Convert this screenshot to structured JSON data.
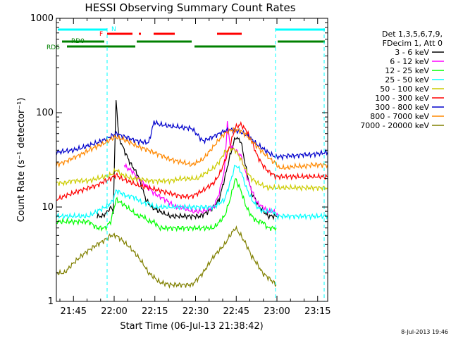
{
  "chart_data": {
    "type": "line",
    "title": "HESSI Observing Summary Count Rates",
    "xlabel": "Start Time (06-Jul-13 21:38:42)",
    "ylabel": "Count Rate (s⁻¹ detector⁻¹)",
    "yscale": "log",
    "ylim": [
      1,
      1000
    ],
    "xlim_minutes_from_start": [
      0,
      100
    ],
    "x_ticks": [
      {
        "label": "21:45",
        "minute": 6.3
      },
      {
        "label": "22:00",
        "minute": 21.3
      },
      {
        "label": "22:15",
        "minute": 36.3
      },
      {
        "label": "22:30",
        "minute": 51.3
      },
      {
        "label": "22:45",
        "minute": 66.3
      },
      {
        "label": "23:00",
        "minute": 81.3
      },
      {
        "label": "23:15",
        "minute": 96.3
      }
    ],
    "y_ticks": [
      {
        "label": "1",
        "value": 1
      },
      {
        "label": "10",
        "value": 10
      },
      {
        "label": "100",
        "value": 100
      },
      {
        "label": "1000",
        "value": 1000
      }
    ],
    "legend_header": [
      "Det 1,3,5,6,7,9,",
      "FDecim 1, Att 0"
    ],
    "legend_placement": "right",
    "timestamp": "8-Jul-2013 19:46",
    "flag_labels": {
      "n": "N",
      "f": "F",
      "rd0": "RD0",
      "rd6": "RD6"
    },
    "flag_colors": {
      "n": "#00ffff",
      "f": "#ff0000",
      "rd0": "#008000",
      "rd6": "#008000"
    },
    "series": [
      {
        "name": "3 - 6 keV",
        "color": "#000000",
        "x": [
          15,
          17,
          19,
          19.5,
          20,
          21,
          22,
          23,
          25,
          27,
          30,
          33,
          35,
          38,
          42,
          46,
          50,
          53,
          56,
          58,
          60,
          62,
          64,
          66,
          68,
          70,
          72,
          75,
          78,
          80,
          82
        ],
        "y": [
          8,
          8,
          9,
          9,
          10,
          9,
          140,
          55,
          40,
          30,
          22,
          12,
          10,
          9,
          8,
          8,
          8,
          8,
          9,
          10,
          12,
          20,
          35,
          55,
          50,
          25,
          14,
          10,
          8,
          8,
          8
        ]
      },
      {
        "name": "6 - 12 keV",
        "color": "#ff00ff",
        "x": [
          25,
          26,
          28,
          30,
          32,
          34,
          36,
          38,
          40,
          42,
          44,
          46,
          50,
          54,
          58,
          60,
          62,
          63,
          64,
          66,
          68,
          70,
          72,
          74,
          76,
          78,
          80,
          82
        ],
        "y": [
          28,
          26,
          24,
          20,
          18,
          16,
          14,
          13,
          12,
          11,
          10,
          10,
          9,
          9,
          10,
          14,
          25,
          80,
          45,
          40,
          35,
          22,
          15,
          11,
          10,
          9,
          9,
          8
        ]
      },
      {
        "name": "12 - 25 keV",
        "color": "#00ff00",
        "x": [
          0,
          3,
          6,
          9,
          12,
          15,
          18,
          20,
          21,
          22,
          24,
          26,
          28,
          30,
          32,
          34,
          36,
          38,
          42,
          46,
          50,
          54,
          58,
          62,
          64,
          66,
          68,
          70,
          72,
          74,
          76,
          78,
          80,
          81
        ],
        "y": [
          7,
          7,
          7,
          7,
          7,
          6,
          6,
          7,
          9,
          12,
          11,
          10,
          9,
          8,
          8,
          7,
          7,
          6,
          6,
          6,
          6,
          6,
          6,
          8,
          12,
          20,
          15,
          10,
          8,
          7,
          7,
          6,
          6,
          6
        ]
      },
      {
        "name": "25 - 50 keV",
        "color": "#00ffff",
        "x": [
          0,
          3,
          6,
          9,
          12,
          15,
          18,
          20,
          21,
          22,
          24,
          26,
          28,
          30,
          32,
          34,
          36,
          38,
          42,
          46,
          50,
          54,
          58,
          62,
          64,
          66,
          68,
          70,
          72,
          74,
          76,
          78,
          80,
          81,
          82,
          85,
          88,
          91,
          94,
          97,
          100
        ],
        "y": [
          8,
          8,
          8,
          8,
          8,
          9,
          10,
          11,
          12,
          15,
          14,
          13,
          13,
          12,
          11,
          11,
          10,
          10,
          10,
          10,
          10,
          10,
          10,
          12,
          18,
          28,
          24,
          16,
          12,
          10,
          9,
          9,
          9,
          8,
          8,
          8,
          8,
          8,
          8,
          8,
          8
        ]
      },
      {
        "name": "50 - 100 keV",
        "color": "#cccc00",
        "x": [
          0,
          3,
          6,
          9,
          12,
          15,
          18,
          20,
          21,
          22,
          24,
          26,
          28,
          30,
          34,
          38,
          42,
          46,
          50,
          52,
          54,
          58,
          60,
          62,
          64,
          66,
          68,
          70,
          72,
          74,
          76,
          78,
          80,
          81,
          82,
          85,
          88,
          91,
          94,
          97,
          100
        ],
        "y": [
          18,
          18,
          19,
          19,
          19,
          20,
          21,
          22,
          23,
          25,
          22,
          21,
          20,
          20,
          19,
          19,
          19,
          20,
          20,
          20,
          22,
          26,
          30,
          38,
          42,
          40,
          32,
          24,
          20,
          18,
          17,
          16,
          16,
          16,
          16,
          16,
          16,
          16,
          16,
          16,
          16
        ]
      },
      {
        "name": "100 - 300 keV",
        "color": "#ff0000",
        "x": [
          0,
          3,
          6,
          9,
          12,
          15,
          18,
          20,
          21,
          22,
          24,
          26,
          28,
          30,
          34,
          38,
          42,
          46,
          50,
          54,
          58,
          60,
          62,
          64,
          66,
          68,
          70,
          72,
          74,
          76,
          78,
          80,
          81,
          82,
          85,
          88,
          91,
          94,
          97,
          100
        ],
        "y": [
          12,
          13,
          14,
          15,
          16,
          17,
          19,
          20,
          21,
          22,
          20,
          19,
          18,
          17,
          16,
          15,
          14,
          13,
          13,
          15,
          18,
          22,
          30,
          45,
          70,
          75,
          65,
          50,
          35,
          28,
          24,
          22,
          21,
          21,
          21,
          21,
          21,
          21,
          21,
          21
        ]
      },
      {
        "name": "300 - 800 keV",
        "color": "#0000cc",
        "x": [
          0,
          3,
          6,
          9,
          12,
          15,
          18,
          20,
          21,
          22,
          24,
          26,
          28,
          30,
          34,
          36,
          38,
          42,
          46,
          50,
          54,
          58,
          60,
          62,
          64,
          66,
          68,
          70,
          72,
          74,
          76,
          78,
          80,
          81,
          82,
          85,
          88,
          91,
          94,
          97,
          100
        ],
        "y": [
          38,
          39,
          40,
          42,
          45,
          48,
          52,
          56,
          58,
          60,
          57,
          55,
          52,
          50,
          48,
          80,
          75,
          72,
          70,
          68,
          50,
          56,
          60,
          64,
          66,
          65,
          62,
          58,
          52,
          46,
          42,
          38,
          35,
          34,
          34,
          35,
          35,
          36,
          36,
          37,
          38
        ]
      },
      {
        "name": "800 - 7000 keV",
        "color": "#ff8800",
        "x": [
          0,
          3,
          6,
          9,
          12,
          15,
          18,
          20,
          21,
          22,
          24,
          26,
          28,
          30,
          34,
          38,
          42,
          46,
          50,
          54,
          58,
          60,
          62,
          64,
          66,
          68,
          70,
          72,
          74,
          76,
          78,
          80,
          81,
          82,
          85,
          88,
          91,
          94,
          97,
          100
        ],
        "y": [
          28,
          30,
          33,
          36,
          40,
          44,
          48,
          52,
          54,
          55,
          53,
          50,
          47,
          44,
          40,
          36,
          32,
          30,
          28,
          32,
          44,
          52,
          60,
          65,
          66,
          64,
          58,
          50,
          44,
          38,
          34,
          30,
          29,
          26,
          26,
          27,
          27,
          28,
          28,
          28
        ]
      },
      {
        "name": "7000 - 20000 keV",
        "color": "#808000",
        "x": [
          0,
          3,
          6,
          9,
          12,
          15,
          18,
          20,
          21,
          22,
          24,
          26,
          28,
          30,
          32,
          34,
          36,
          38,
          42,
          46,
          50,
          54,
          58,
          62,
          64,
          66,
          68,
          70,
          72,
          74,
          76,
          78,
          80,
          81
        ],
        "y": [
          2,
          2,
          2.5,
          3,
          3.5,
          4,
          4.5,
          5,
          5,
          5,
          4.5,
          4,
          3.5,
          3,
          2.5,
          2,
          1.8,
          1.6,
          1.5,
          1.5,
          1.5,
          2,
          3,
          4,
          5,
          6,
          5,
          4,
          3,
          2.5,
          2,
          1.8,
          1.6,
          1.5
        ]
      }
    ]
  }
}
